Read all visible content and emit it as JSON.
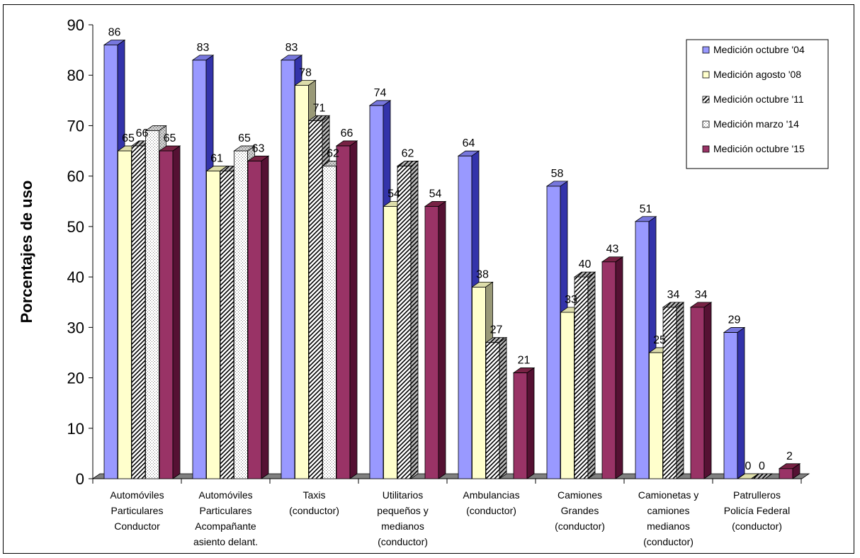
{
  "chart_data": {
    "type": "bar",
    "title": "",
    "xlabel": "",
    "ylabel": "Porcentajes de uso",
    "ylim": [
      0,
      90
    ],
    "yticks": [
      0,
      10,
      20,
      30,
      40,
      50,
      60,
      70,
      80,
      90
    ],
    "grid": false,
    "legend_position": "top-right",
    "categories": [
      [
        "Automóviles",
        "Particulares",
        "Conductor"
      ],
      [
        "Automóviles",
        "Particulares",
        "Acompañante",
        "asiento delant."
      ],
      [
        "Taxis",
        "(conductor)"
      ],
      [
        "Utilitarios",
        "pequeños y",
        "medianos",
        "(conductor)"
      ],
      [
        "Ambulancias",
        "(conductor)"
      ],
      [
        "Camiones",
        "Grandes",
        "(conductor)"
      ],
      [
        "Camionetas y",
        "camiones",
        "medianos",
        "(conductor)"
      ],
      [
        "Patrulleros",
        "Policía Federal",
        "(conductor)"
      ]
    ],
    "series": [
      {
        "name": "Medición octubre '04",
        "values": [
          86,
          83,
          83,
          74,
          64,
          58,
          51,
          29
        ],
        "color": "#9999ff",
        "pattern": "solid"
      },
      {
        "name": "Medición agosto '08",
        "values": [
          65,
          61,
          78,
          54,
          38,
          33,
          25,
          0
        ],
        "color": "#ffffcc",
        "pattern": "solid"
      },
      {
        "name": "Medición octubre '11",
        "values": [
          66,
          61,
          71,
          62,
          27,
          40,
          34,
          0
        ],
        "color": "#ffffff",
        "pattern": "diagonal-hatch"
      },
      {
        "name": "Medición marzo '14",
        "values": [
          69,
          65,
          62,
          null,
          null,
          null,
          null,
          null
        ],
        "color": "#ffffff",
        "pattern": "dotted"
      },
      {
        "name": "Medición octubre '15",
        "values": [
          65,
          63,
          66,
          54,
          21,
          43,
          34,
          2
        ],
        "color": "#993366",
        "pattern": "solid"
      }
    ],
    "data_labels": [
      [
        "86",
        "65",
        "66",
        "",
        "65"
      ],
      [
        "83",
        "61",
        "",
        "65",
        "63"
      ],
      [
        "83",
        "78",
        "71",
        "62",
        "66"
      ],
      [
        "74",
        "54",
        "62",
        "",
        "54"
      ],
      [
        "64",
        "38",
        "27",
        "",
        "21"
      ],
      [
        "58",
        "33",
        "40",
        "",
        "43"
      ],
      [
        "51",
        "25",
        "34",
        "",
        "34"
      ],
      [
        "29",
        "0",
        "0",
        "",
        "2"
      ]
    ]
  }
}
